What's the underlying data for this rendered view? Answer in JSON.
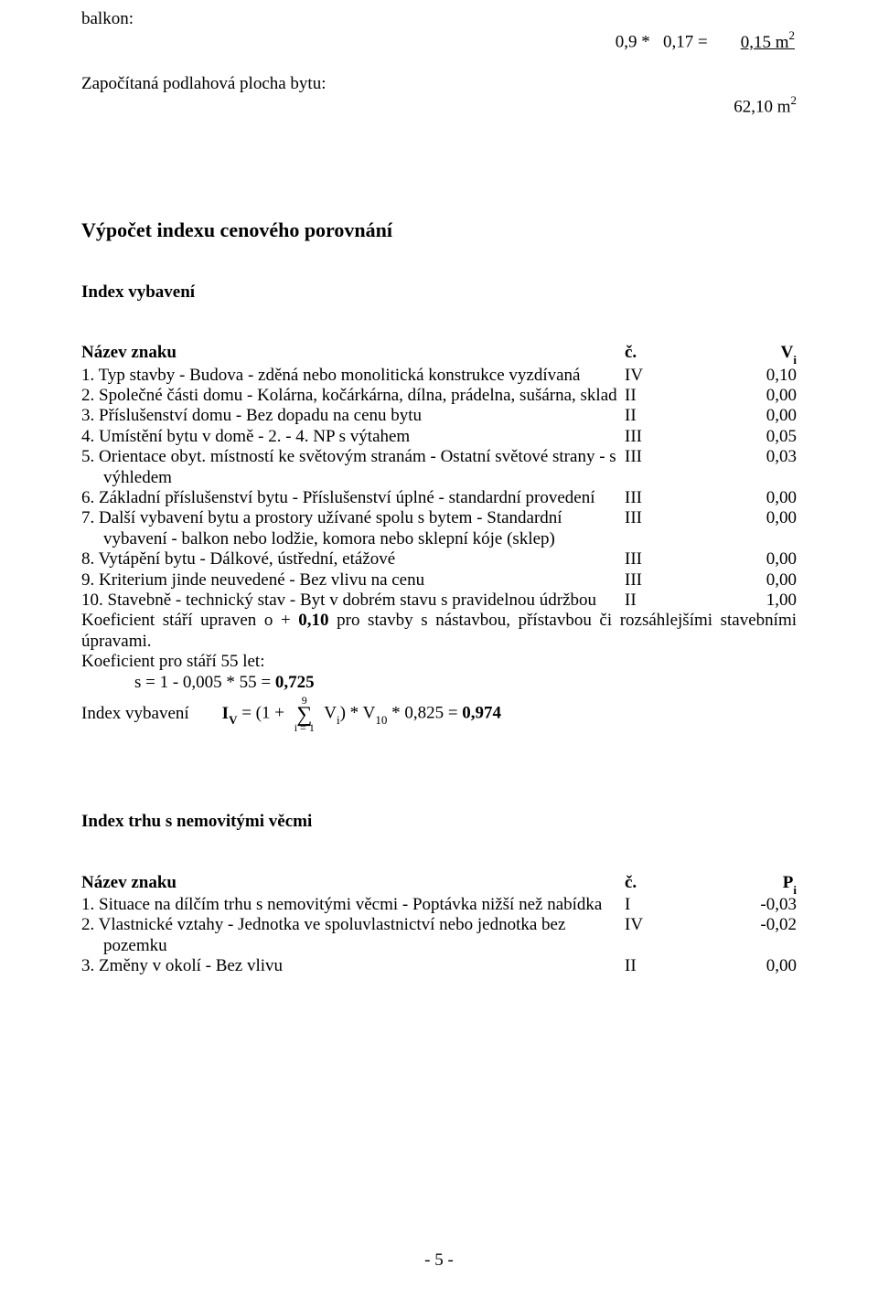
{
  "top": {
    "balkon_label": "balkon:",
    "balkon_calc_lhs": "0,9 *   0,17 =",
    "balkon_calc_res": "0,15 m",
    "balkon_calc_sup": "2",
    "area_label": "Započítaná podlahová plocha bytu:",
    "area_value": "62,10 m",
    "area_value_sup": "2"
  },
  "main_title": "Výpočet indexu cenového porovnání",
  "indexV": {
    "heading": "Index vybavení",
    "th_name": "Název znaku",
    "th_c": "č.",
    "th_v_base": "V",
    "th_v_sub": "i",
    "rows": [
      {
        "text": "1. Typ stavby - Budova - zděná nebo monolitická konstrukce vyzdívaná",
        "c": "IV",
        "v": "0,10"
      },
      {
        "text": "2. Společné části domu - Kolárna, kočárkárna, dílna, prádelna, sušárna, sklad",
        "c": "II",
        "v": "0,00"
      },
      {
        "text": "3. Příslušenství domu - Bez dopadu na cenu bytu",
        "c": "II",
        "v": "0,00"
      },
      {
        "text": "4. Umístění bytu v domě - 2. - 4. NP s výtahem",
        "c": "III",
        "v": "0,05"
      },
      {
        "text": "5. Orientace obyt. místností ke světovým stranám - Ostatní světové strany - s výhledem",
        "c": "III",
        "v": "0,03"
      },
      {
        "text": "6. Základní příslušenství bytu - Příslušenství úplné - standardní provedení",
        "c": "III",
        "v": "0,00"
      },
      {
        "text": "7. Další vybavení bytu a prostory užívané spolu s bytem - Standardní vybavení - balkon nebo lodžie, komora nebo sklepní kóje (sklep)",
        "c": "III",
        "v": "0,00"
      },
      {
        "text": "8. Vytápění bytu - Dálkové, ústřední, etážové",
        "c": "III",
        "v": "0,00"
      },
      {
        "text": "9. Kriterium jinde neuvedené - Bez vlivu na cenu",
        "c": "III",
        "v": "0,00"
      },
      {
        "text": "10. Stavebně - technický stav - Byt v dobrém stavu s pravidelnou údržbou",
        "c": "II",
        "v": "1,00"
      }
    ],
    "coef_note_pre": "Koeficient stáří upraven o + ",
    "coef_note_bold": "0,10",
    "coef_note_post": " pro stavby s nástavbou, přístavbou či rozsáhlejšími stavebními úpravami.",
    "coef_age_label": "Koeficient pro stáří 55 let:",
    "coef_age_formula_pre": "s = 1 - 0,005 * 55 = ",
    "coef_age_formula_res": "0,725",
    "iv_lhs": "Index vybavení",
    "iv_symbol_pre": "I",
    "iv_symbol_sub": "V",
    "iv_eq_pre": " = (1 + ",
    "sigma_top": "9",
    "sigma_bot": "i = 1",
    "iv_eq_mid_pre": " V",
    "iv_eq_mid_sub": "i",
    "iv_eq_mid_post": ") * V",
    "iv_eq_mid_sub2": "10",
    "iv_eq_tail": " * 0,825 = ",
    "iv_result": "0,974"
  },
  "indexT": {
    "heading": "Index trhu s nemovitými věcmi",
    "th_name": "Název znaku",
    "th_c": "č.",
    "th_p_base": "P",
    "th_p_sub": "i",
    "rows": [
      {
        "text": "1. Situace na dílčím trhu s nemovitými věcmi - Poptávka nižší než nabídka",
        "c": "I",
        "v": "-0,03"
      },
      {
        "text": "2. Vlastnické vztahy - Jednotka ve spoluvlastnictví nebo jednotka bez pozemku",
        "c": "IV",
        "v": "-0,02"
      },
      {
        "text": "3. Změny v okolí - Bez vlivu",
        "c": "II",
        "v": "0,00"
      }
    ]
  },
  "footer": "- 5 -"
}
